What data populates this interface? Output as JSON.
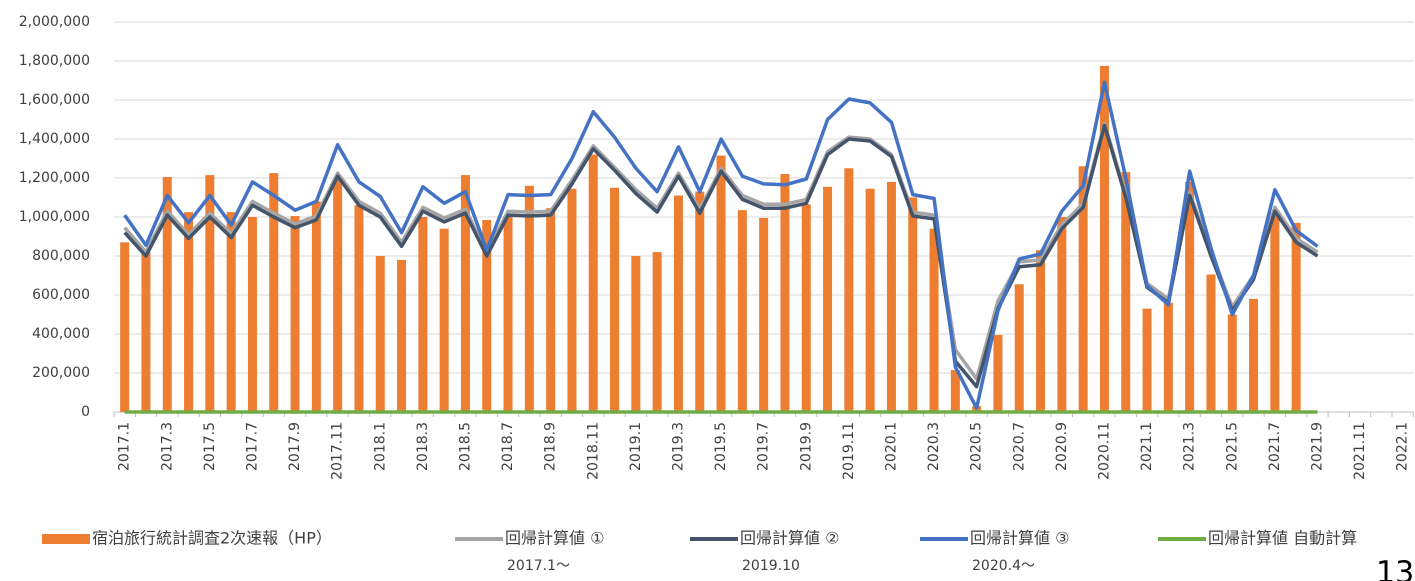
{
  "chart_data": {
    "type": "bar_line",
    "categories": [
      "2017.1",
      null,
      "2017.3",
      null,
      "2017.5",
      null,
      "2017.7",
      null,
      "2017.9",
      null,
      "2017.11",
      null,
      "2018.1",
      null,
      "2018.3",
      null,
      "2018.5",
      null,
      "2018.7",
      null,
      "2018.9",
      null,
      "2018.11",
      null,
      "2019.1",
      null,
      "2019.3",
      null,
      "2019.5",
      null,
      "2019.7",
      null,
      "2019.9",
      null,
      "2019.11",
      null,
      "2020.1",
      null,
      "2020.3",
      null,
      "2020.5",
      null,
      "2020.7",
      null,
      "2020.9",
      null,
      "2020.11",
      null,
      "2021.1",
      null,
      "2021.3",
      null,
      "2021.5",
      null,
      "2021.7",
      null,
      "2021.9",
      null,
      "2021.11",
      null,
      "2022.1"
    ],
    "series": [
      {
        "name": "宿泊旅行統計調査2次速報（HP）",
        "kind": "bar",
        "color": "#ed7d31",
        "values": [
          870000,
          820000,
          1205000,
          1025000,
          1215000,
          1025000,
          1000000,
          1225000,
          1005000,
          1080000,
          1200000,
          1060000,
          800000,
          780000,
          1000000,
          940000,
          1215000,
          985000,
          1000000,
          1160000,
          1045000,
          1145000,
          1320000,
          1150000,
          800000,
          820000,
          1110000,
          1130000,
          1315000,
          1035000,
          995000,
          1220000,
          1065000,
          1155000,
          1250000,
          1145000,
          1180000,
          1100000,
          940000,
          215000,
          30000,
          395000,
          655000,
          830000,
          1000000,
          1260000,
          1775000,
          1230000,
          530000,
          560000,
          1180000,
          705000,
          500000,
          580000,
          1020000,
          970000,
          null,
          null,
          null,
          null,
          null
        ]
      },
      {
        "name": "回帰計算値 ①",
        "note": "2017.1〜",
        "kind": "line",
        "color": "#a5a5a5",
        "values": [
          945000,
          820000,
          1030000,
          910000,
          1020000,
          915000,
          1080000,
          1020000,
          965000,
          1005000,
          1225000,
          1080000,
          1020000,
          870000,
          1050000,
          995000,
          1040000,
          820000,
          1030000,
          1025000,
          1030000,
          1190000,
          1365000,
          1255000,
          1140000,
          1045000,
          1225000,
          1040000,
          1250000,
          1110000,
          1065000,
          1065000,
          1090000,
          1335000,
          1410000,
          1400000,
          1320000,
          1025000,
          1010000,
          320000,
          170000,
          570000,
          770000,
          780000,
          960000,
          1070000,
          1480000,
          1115000,
          660000,
          580000,
          1125000,
          820000,
          540000,
          700000,
          1050000,
          890000,
          820000,
          null,
          null,
          null,
          null
        ]
      },
      {
        "name": "回帰計算値 ②",
        "note": "2019.10",
        "kind": "line",
        "color": "#44546a",
        "values": [
          920000,
          800000,
          1010000,
          890000,
          1000000,
          895000,
          1060000,
          1000000,
          945000,
          985000,
          1210000,
          1060000,
          1000000,
          850000,
          1030000,
          975000,
          1020000,
          800000,
          1010000,
          1005000,
          1010000,
          1170000,
          1350000,
          1240000,
          1120000,
          1025000,
          1210000,
          1020000,
          1235000,
          1090000,
          1045000,
          1045000,
          1070000,
          1320000,
          1400000,
          1390000,
          1310000,
          1005000,
          990000,
          260000,
          130000,
          530000,
          745000,
          755000,
          940000,
          1050000,
          1470000,
          1100000,
          640000,
          560000,
          1110000,
          800000,
          520000,
          680000,
          1030000,
          870000,
          800000,
          null,
          null,
          null,
          null
        ]
      },
      {
        "name": "回帰計算値 ③",
        "note": "2020.4〜",
        "kind": "line",
        "color": "#4472c4",
        "values": [
          1010000,
          855000,
          1110000,
          970000,
          1110000,
          960000,
          1180000,
          1110000,
          1035000,
          1080000,
          1370000,
          1180000,
          1105000,
          920000,
          1155000,
          1070000,
          1130000,
          830000,
          1115000,
          1110000,
          1115000,
          1300000,
          1540000,
          1410000,
          1250000,
          1130000,
          1360000,
          1130000,
          1400000,
          1210000,
          1170000,
          1165000,
          1195000,
          1500000,
          1605000,
          1585000,
          1485000,
          1115000,
          1095000,
          230000,
          20000,
          520000,
          785000,
          810000,
          1030000,
          1160000,
          1690000,
          1200000,
          650000,
          550000,
          1235000,
          840000,
          500000,
          700000,
          1140000,
          930000,
          850000,
          null,
          null,
          null,
          null
        ]
      },
      {
        "name": "回帰計算値 自動計算",
        "kind": "line",
        "color": "#70ad47",
        "values": [
          0,
          0,
          0,
          0,
          0,
          0,
          0,
          0,
          0,
          0,
          0,
          0,
          0,
          0,
          0,
          0,
          0,
          0,
          0,
          0,
          0,
          0,
          0,
          0,
          0,
          0,
          0,
          0,
          0,
          0,
          0,
          0,
          0,
          0,
          0,
          0,
          0,
          0,
          0,
          0,
          0,
          0,
          0,
          0,
          0,
          0,
          0,
          0,
          0,
          0,
          0,
          0,
          0,
          0,
          0,
          0,
          0,
          null,
          null,
          null,
          null
        ]
      }
    ],
    "ylim": [
      0,
      2000000
    ],
    "yticks": [
      0,
      {
        "value": 200000,
        "label": "200,000"
      },
      {
        "value": 400000,
        "label": "400,000"
      },
      {
        "value": 600000,
        "label": "600,000"
      },
      {
        "value": 800000,
        "label": "800,000"
      },
      {
        "value": 1000000,
        "label": "1,000,000"
      },
      {
        "value": 1200000,
        "label": "1,200,000"
      },
      {
        "value": 1400000,
        "label": "1,400,000"
      },
      {
        "value": 1600000,
        "label": "1,600,000"
      },
      {
        "value": 1800000,
        "label": "1,800,000"
      },
      {
        "value": 2000000,
        "label": "2,000,000"
      }
    ],
    "grid": true,
    "legend": "bottom",
    "page_number": "13"
  }
}
